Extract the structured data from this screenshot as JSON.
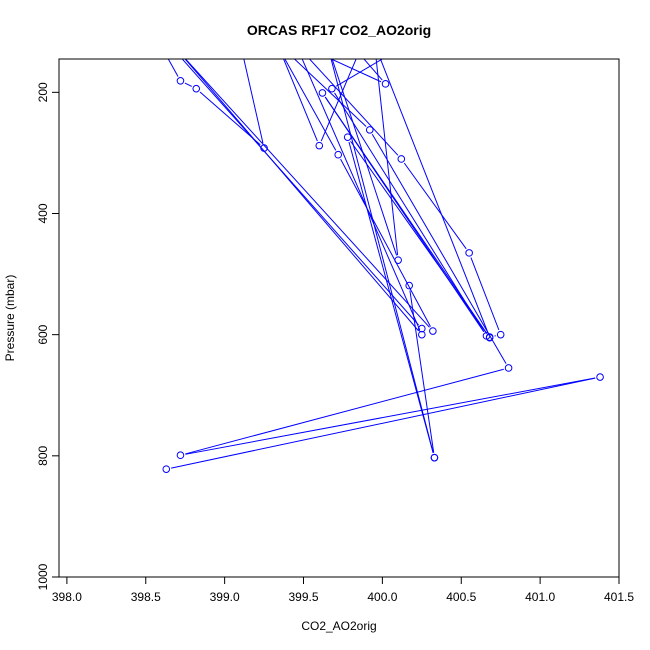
{
  "chart_data": {
    "type": "line",
    "title": "ORCAS RF17 CO2_AO2orig",
    "xlabel": "CO2_AO2orig",
    "ylabel": "Pressure (mbar)",
    "xlim": [
      397.95,
      401.5
    ],
    "ylim": [
      1000,
      145
    ],
    "y_reversed": true,
    "x_ticks": [
      398.0,
      398.5,
      399.0,
      399.5,
      400.0,
      400.5,
      401.0,
      401.5
    ],
    "x_tick_labels": [
      "398.0",
      "398.5",
      "399.0",
      "399.5",
      "400.0",
      "400.5",
      "401.0",
      "401.5"
    ],
    "y_ticks": [
      200,
      400,
      600,
      800,
      1000
    ],
    "y_tick_labels": [
      "200",
      "400",
      "600",
      "800",
      "1000"
    ],
    "grid": false,
    "line_color": "#0000ff",
    "series": [
      {
        "points": [
          [
            398.6,
            125
          ],
          [
            398.72,
            181
          ],
          [
            398.82,
            194
          ],
          [
            399.25,
            292
          ],
          [
            399.1,
            120
          ],
          [
            399.55,
            130
          ],
          [
            400.02,
            186
          ],
          [
            399.85,
            135
          ],
          [
            399.6,
            288
          ],
          [
            399.35,
            130
          ],
          [
            399.72,
            303
          ],
          [
            400.32,
            594
          ],
          [
            398.7,
            130
          ],
          [
            400.25,
            600
          ],
          [
            399.45,
            120
          ],
          [
            400.12,
            310
          ],
          [
            400.55,
            465
          ],
          [
            400.75,
            600
          ],
          [
            400.68,
            604
          ],
          [
            399.95,
            120
          ],
          [
            400.1,
            477
          ],
          [
            399.65,
            120
          ],
          [
            400.33,
            803
          ],
          [
            399.78,
            274
          ],
          [
            400.68,
            605
          ],
          [
            399.62,
            201
          ],
          [
            400.66,
            602
          ],
          [
            399.68,
            194
          ],
          [
            400.15,
            122
          ],
          [
            399.3,
            110
          ],
          [
            399.92,
            262
          ],
          [
            400.8,
            655
          ],
          [
            398.72,
            799
          ],
          [
            401.38,
            670
          ],
          [
            398.63,
            822
          ]
        ]
      },
      {
        "points": [
          [
            398.68,
            130
          ],
          [
            400.25,
            590
          ]
        ]
      },
      {
        "points": [
          [
            400.17,
            519
          ],
          [
            400.33,
            803
          ]
        ]
      }
    ]
  }
}
